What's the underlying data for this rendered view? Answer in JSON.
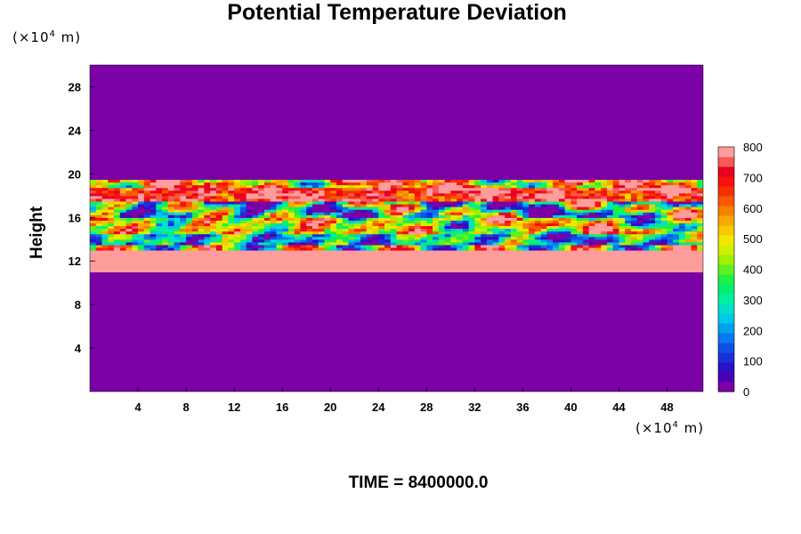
{
  "chart_data": {
    "type": "heatmap",
    "title": "Potential Temperature Deviation",
    "ylabel": "Height",
    "x_unit": {
      "prefix": "(×10",
      "exp": "4",
      "suffix": " m)"
    },
    "y_unit": {
      "prefix": "(×10",
      "exp": "4",
      "suffix": " m)"
    },
    "xlim": [
      0,
      51
    ],
    "ylim": [
      0,
      30
    ],
    "x_ticks": [
      4,
      8,
      12,
      16,
      20,
      24,
      28,
      32,
      36,
      40,
      44,
      48
    ],
    "y_ticks": [
      4,
      8,
      12,
      16,
      20,
      24,
      28
    ],
    "colorbar": {
      "range": [
        0,
        800
      ],
      "ticks": [
        0,
        100,
        200,
        300,
        400,
        500,
        600,
        700,
        800
      ],
      "colors": [
        "#7b00a6",
        "#4a00b5",
        "#2b10c8",
        "#1a30d8",
        "#1050e6",
        "#0878ee",
        "#00a0f0",
        "#00c8e8",
        "#00e0c8",
        "#00f0a0",
        "#00f070",
        "#20f040",
        "#60f020",
        "#a0f000",
        "#d0f000",
        "#f0e800",
        "#f8c800",
        "#f8a800",
        "#f88000",
        "#f85800",
        "#f83000",
        "#f81010",
        "#e80020",
        "#f85858",
        "#ff9c9c"
      ]
    },
    "structure": [
      {
        "y_range": [
          0,
          11
        ],
        "value_range": "0"
      },
      {
        "y_range": [
          11,
          13
        ],
        "value_range": "800"
      },
      {
        "y_range": [
          13,
          19.5
        ],
        "value_range": "0-800 (turbulent mixed)"
      },
      {
        "y_range": [
          19.5,
          30
        ],
        "value_range": "0"
      }
    ]
  },
  "time_label": "TIME = 8400000.0"
}
